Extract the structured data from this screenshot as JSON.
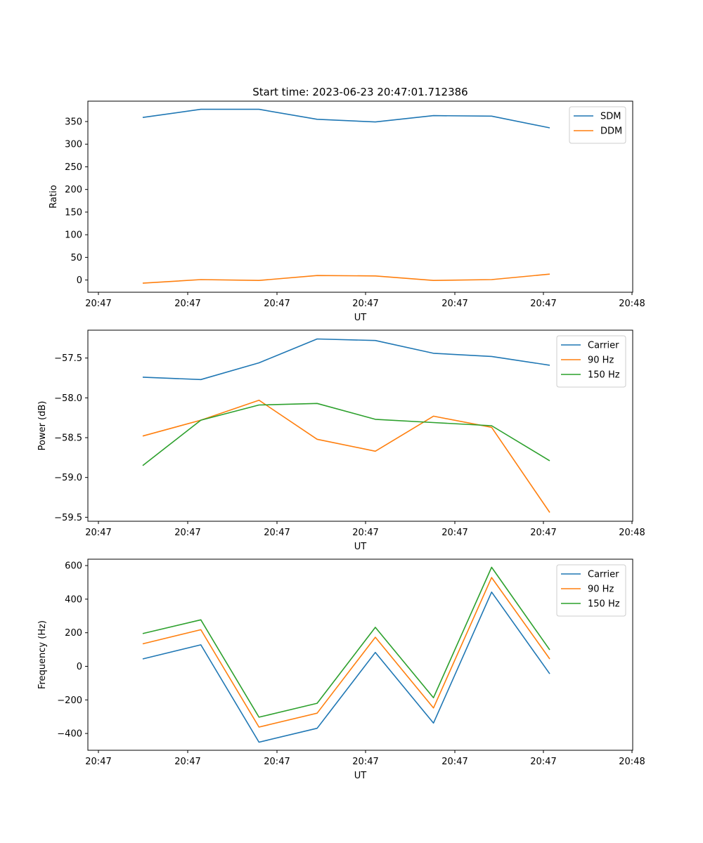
{
  "chart_data": [
    {
      "type": "line",
      "title": "Start time: 2023-06-23 20:47:01.712386",
      "xlabel": "UT",
      "ylabel": "Ratio",
      "x_tick_labels": [
        "20:47",
        "20:47",
        "20:47",
        "20:47",
        "20:47",
        "20:47",
        "20:48"
      ],
      "x_points": 8,
      "ylim": [
        -27,
        395
      ],
      "y_ticks": [
        0,
        50,
        100,
        150,
        200,
        250,
        300,
        350
      ],
      "grid": false,
      "legend_position": "top-right",
      "series": [
        {
          "name": "SDM",
          "color": "#1f77b4",
          "values": [
            359,
            377,
            377,
            355,
            349,
            363,
            362,
            336
          ]
        },
        {
          "name": "DDM",
          "color": "#ff7f0e",
          "values": [
            -7,
            1,
            -1,
            10,
            9,
            -1,
            1,
            13
          ]
        }
      ]
    },
    {
      "type": "line",
      "title": "",
      "xlabel": "UT",
      "ylabel": "Power (dB)",
      "x_tick_labels": [
        "20:47",
        "20:47",
        "20:47",
        "20:47",
        "20:47",
        "20:47",
        "20:48"
      ],
      "x_points": 8,
      "ylim": [
        -59.55,
        -57.15
      ],
      "y_ticks": [
        -59.5,
        -59.0,
        -58.5,
        -58.0,
        -57.5
      ],
      "y_tick_labels": [
        "−59.5",
        "−59.0",
        "−58.5",
        "−58.0",
        "−57.5"
      ],
      "grid": false,
      "legend_position": "top-right",
      "series": [
        {
          "name": "Carrier",
          "color": "#1f77b4",
          "values": [
            -57.74,
            -57.77,
            -57.56,
            -57.26,
            -57.28,
            -57.44,
            -57.48,
            -57.59
          ]
        },
        {
          "name": "90 Hz",
          "color": "#ff7f0e",
          "values": [
            -58.48,
            -58.28,
            -58.03,
            -58.52,
            -58.67,
            -58.23,
            -58.37,
            -59.44
          ]
        },
        {
          "name": "150 Hz",
          "color": "#2ca02c",
          "values": [
            -58.85,
            -58.28,
            -58.09,
            -58.07,
            -58.27,
            -58.31,
            -58.35,
            -58.79
          ]
        }
      ]
    },
    {
      "type": "line",
      "title": "",
      "xlabel": "UT",
      "ylabel": "Frequency (Hz)",
      "x_tick_labels": [
        "20:47",
        "20:47",
        "20:47",
        "20:47",
        "20:47",
        "20:47",
        "20:48"
      ],
      "x_points": 8,
      "ylim": [
        -500,
        638
      ],
      "y_ticks": [
        -400,
        -200,
        0,
        200,
        400,
        600
      ],
      "y_tick_labels": [
        "−400",
        "−200",
        "0",
        "200",
        "400",
        "600"
      ],
      "grid": false,
      "legend_position": "top-right",
      "series": [
        {
          "name": "Carrier",
          "color": "#1f77b4",
          "values": [
            44,
            128,
            -452,
            -369,
            83,
            -338,
            442,
            -45
          ]
        },
        {
          "name": "90 Hz",
          "color": "#ff7f0e",
          "values": [
            134,
            218,
            -362,
            -279,
            173,
            -248,
            529,
            44
          ]
        },
        {
          "name": "150 Hz",
          "color": "#2ca02c",
          "values": [
            195,
            277,
            -303,
            -220,
            232,
            -187,
            590,
            98
          ]
        }
      ]
    }
  ]
}
